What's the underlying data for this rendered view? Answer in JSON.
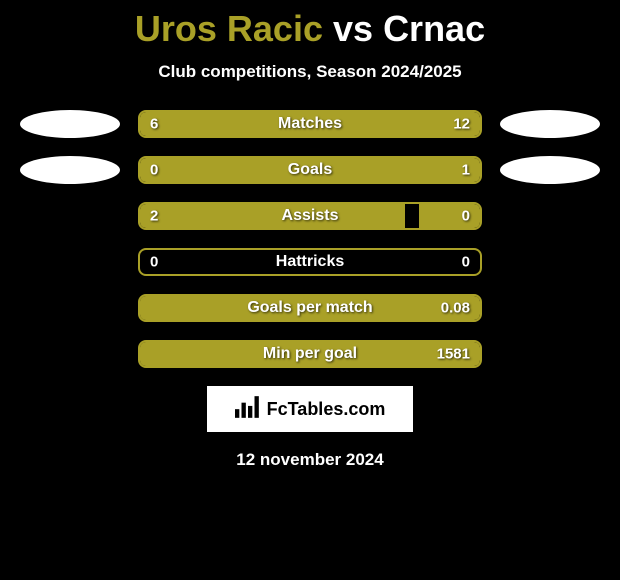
{
  "title": {
    "player1": "Uros Racic",
    "vs": "vs",
    "player2": "Crnac",
    "player1_color": "#a9a027",
    "vs_color": "#ffffff",
    "player2_color": "#ffffff"
  },
  "subtitle": "Club competitions, Season 2024/2025",
  "border_color": "#a9a027",
  "fill_color": "#a9a027",
  "background_color": "#000000",
  "stats": [
    {
      "label": "Matches",
      "left_val": "6",
      "right_val": "12",
      "left_pct": 30,
      "right_pct": 70,
      "show_ellipses": true
    },
    {
      "label": "Goals",
      "left_val": "0",
      "right_val": "1",
      "left_pct": 18,
      "right_pct": 82,
      "show_ellipses": true
    },
    {
      "label": "Assists",
      "left_val": "2",
      "right_val": "0",
      "left_pct": 78,
      "right_pct": 18,
      "show_ellipses": false
    },
    {
      "label": "Hattricks",
      "left_val": "0",
      "right_val": "0",
      "left_pct": 0,
      "right_pct": 0,
      "show_ellipses": false
    },
    {
      "label": "Goals per match",
      "left_val": "",
      "right_val": "0.08",
      "left_pct": 0,
      "right_pct": 100,
      "show_ellipses": false
    },
    {
      "label": "Min per goal",
      "left_val": "",
      "right_val": "1581",
      "left_pct": 0,
      "right_pct": 100,
      "show_ellipses": false
    }
  ],
  "logo_text": "FcTables.com",
  "date": "12 november 2024"
}
